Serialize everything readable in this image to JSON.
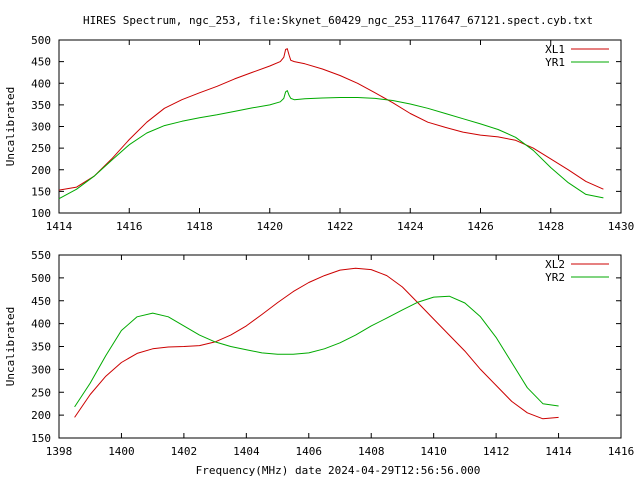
{
  "title": "HIRES Spectrum, ngc_253, file:Skynet_60429_ngc_253_117647_67121.spect.cyb.txt",
  "footer_xlabel": "Frequency(MHz) date 2024-04-29T12:56:56.000",
  "colors": {
    "red": "#cc0000",
    "green": "#00aa00",
    "axis": "#000000"
  },
  "chart_data": [
    {
      "type": "line",
      "ylabel": "Uncalibrated",
      "xlim": [
        1414,
        1430
      ],
      "ylim": [
        100,
        500
      ],
      "xticks": [
        "1414",
        "1416",
        "1418",
        "1420",
        "1422",
        "1424",
        "1426",
        "1428",
        "1430"
      ],
      "yticks": [
        "100",
        "150",
        "200",
        "250",
        "300",
        "350",
        "400",
        "450",
        "500"
      ],
      "legend": "top-right",
      "series": [
        {
          "name": "XL1",
          "color": "#cc0000",
          "x": [
            1414.0,
            1414.5,
            1415.0,
            1415.5,
            1416.0,
            1416.5,
            1417.0,
            1417.5,
            1418.0,
            1418.5,
            1419.0,
            1419.5,
            1420.0,
            1420.3,
            1420.4,
            1420.45,
            1420.5,
            1420.55,
            1420.6,
            1420.7,
            1421.0,
            1421.5,
            1422.0,
            1422.5,
            1423.0,
            1423.5,
            1424.0,
            1424.5,
            1425.0,
            1425.5,
            1426.0,
            1426.5,
            1427.0,
            1427.5,
            1428.0,
            1428.5,
            1429.0,
            1429.5
          ],
          "values": [
            153,
            160,
            185,
            225,
            270,
            310,
            342,
            362,
            378,
            393,
            410,
            425,
            440,
            450,
            460,
            478,
            480,
            465,
            453,
            450,
            445,
            433,
            418,
            400,
            378,
            355,
            330,
            310,
            298,
            287,
            280,
            276,
            268,
            250,
            225,
            200,
            173,
            155
          ]
        },
        {
          "name": "YR1",
          "color": "#00aa00",
          "x": [
            1414.0,
            1414.5,
            1415.0,
            1415.5,
            1416.0,
            1416.5,
            1417.0,
            1417.5,
            1418.0,
            1418.5,
            1419.0,
            1419.5,
            1420.0,
            1420.3,
            1420.4,
            1420.45,
            1420.5,
            1420.55,
            1420.6,
            1420.7,
            1421.0,
            1421.5,
            1422.0,
            1422.5,
            1423.0,
            1423.5,
            1424.0,
            1424.5,
            1425.0,
            1425.5,
            1426.0,
            1426.5,
            1427.0,
            1427.5,
            1428.0,
            1428.5,
            1429.0,
            1429.5
          ],
          "values": [
            133,
            155,
            185,
            222,
            258,
            285,
            302,
            312,
            320,
            327,
            335,
            343,
            350,
            357,
            365,
            380,
            383,
            372,
            365,
            362,
            364,
            366,
            367,
            367,
            365,
            360,
            352,
            342,
            330,
            318,
            306,
            293,
            275,
            245,
            205,
            170,
            143,
            135
          ]
        }
      ]
    },
    {
      "type": "line",
      "ylabel": "Uncalibrated",
      "xlim": [
        1398,
        1416
      ],
      "ylim": [
        150,
        550
      ],
      "xticks": [
        "1398",
        "1400",
        "1402",
        "1404",
        "1406",
        "1408",
        "1410",
        "1412",
        "1414",
        "1416"
      ],
      "yticks": [
        "150",
        "200",
        "250",
        "300",
        "350",
        "400",
        "450",
        "500",
        "550"
      ],
      "legend": "top-right",
      "series": [
        {
          "name": "XL2",
          "color": "#cc0000",
          "x": [
            1398.5,
            1399.0,
            1399.5,
            1400.0,
            1400.5,
            1401.0,
            1401.5,
            1402.0,
            1402.5,
            1403.0,
            1403.5,
            1404.0,
            1404.5,
            1405.0,
            1405.5,
            1406.0,
            1406.5,
            1407.0,
            1407.5,
            1408.0,
            1408.5,
            1409.0,
            1409.5,
            1410.0,
            1410.5,
            1411.0,
            1411.5,
            1412.0,
            1412.5,
            1413.0,
            1413.5,
            1414.0
          ],
          "values": [
            195,
            245,
            285,
            315,
            335,
            345,
            349,
            350,
            352,
            360,
            375,
            395,
            420,
            446,
            470,
            490,
            505,
            517,
            521,
            518,
            505,
            480,
            445,
            410,
            375,
            340,
            300,
            265,
            230,
            205,
            192,
            195
          ]
        },
        {
          "name": "YR2",
          "color": "#00aa00",
          "x": [
            1398.5,
            1399.0,
            1399.5,
            1400.0,
            1400.5,
            1401.0,
            1401.5,
            1402.0,
            1402.5,
            1403.0,
            1403.5,
            1404.0,
            1404.5,
            1405.0,
            1405.5,
            1406.0,
            1406.5,
            1407.0,
            1407.5,
            1408.0,
            1408.5,
            1409.0,
            1409.5,
            1410.0,
            1410.5,
            1411.0,
            1411.5,
            1412.0,
            1412.5,
            1413.0,
            1413.5,
            1414.0
          ],
          "values": [
            218,
            270,
            330,
            385,
            415,
            423,
            415,
            395,
            375,
            360,
            350,
            343,
            336,
            333,
            333,
            336,
            345,
            358,
            375,
            395,
            412,
            430,
            447,
            458,
            460,
            445,
            415,
            370,
            315,
            260,
            225,
            220
          ]
        }
      ]
    }
  ]
}
